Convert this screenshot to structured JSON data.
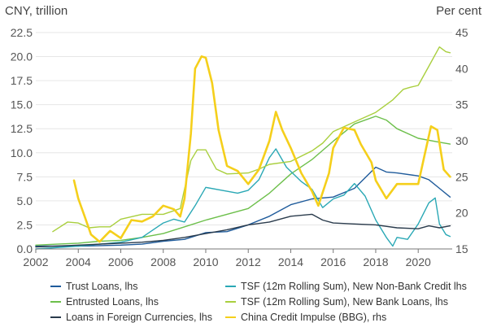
{
  "chart_data": {
    "type": "line",
    "left_axis_label": "CNY, trillion",
    "right_axis_label": "Per cent",
    "x_ticks": [
      "2002",
      "2004",
      "2006",
      "2008",
      "2010",
      "2012",
      "2014",
      "2016",
      "2018",
      "2020"
    ],
    "left_ticks": [
      "0.0",
      "2.5",
      "5.0",
      "7.5",
      "10.0",
      "12.5",
      "15.0",
      "17.5",
      "20.0",
      "22.5"
    ],
    "right_ticks": [
      "15",
      "20",
      "25",
      "30",
      "35",
      "40",
      "45"
    ],
    "xlim": [
      2002,
      2021.6
    ],
    "ylim_left": [
      0,
      22.5
    ],
    "ylim_right": [
      15,
      45
    ],
    "series": [
      {
        "name": "Trust Loans, lhs",
        "axis": "left",
        "color": "#1f5b9b",
        "points": [
          [
            2002,
            0.3
          ],
          [
            2004,
            0.3
          ],
          [
            2006,
            0.4
          ],
          [
            2007,
            0.5
          ],
          [
            2008,
            0.8
          ],
          [
            2009,
            1.0
          ],
          [
            2010,
            1.7
          ],
          [
            2011,
            1.8
          ],
          [
            2012,
            2.5
          ],
          [
            2013,
            3.4
          ],
          [
            2014,
            4.6
          ],
          [
            2015,
            5.2
          ],
          [
            2016,
            5.4
          ],
          [
            2017,
            6.3
          ],
          [
            2018,
            8.5
          ],
          [
            2018.5,
            8.0
          ],
          [
            2019,
            7.9
          ],
          [
            2020,
            7.6
          ],
          [
            2020.5,
            7.2
          ],
          [
            2021,
            6.3
          ],
          [
            2021.5,
            5.4
          ]
        ]
      },
      {
        "name": "Entrusted Loans, lhs",
        "axis": "left",
        "color": "#6cbf4a",
        "points": [
          [
            2002,
            0.4
          ],
          [
            2003,
            0.5
          ],
          [
            2004,
            0.6
          ],
          [
            2005,
            0.8
          ],
          [
            2006,
            0.9
          ],
          [
            2007,
            1.2
          ],
          [
            2008,
            1.6
          ],
          [
            2009,
            2.3
          ],
          [
            2010,
            3.0
          ],
          [
            2011,
            3.6
          ],
          [
            2012,
            4.2
          ],
          [
            2013,
            5.8
          ],
          [
            2014,
            7.8
          ],
          [
            2015,
            9.3
          ],
          [
            2016,
            11.2
          ],
          [
            2017,
            13.0
          ],
          [
            2018,
            13.8
          ],
          [
            2018.5,
            13.4
          ],
          [
            2019,
            12.5
          ],
          [
            2020,
            11.5
          ],
          [
            2021,
            11.1
          ],
          [
            2021.5,
            10.9
          ]
        ]
      },
      {
        "name": "TSF (12m Rolling Sum), New Non-Bank Credit lhs",
        "axis": "left",
        "color": "#2aa8b5",
        "points": [
          [
            2002,
            0.0
          ],
          [
            2004,
            0.3
          ],
          [
            2005,
            0.5
          ],
          [
            2006,
            0.7
          ],
          [
            2007,
            1.2
          ],
          [
            2008,
            2.7
          ],
          [
            2008.5,
            3.1
          ],
          [
            2009,
            2.8
          ],
          [
            2009.5,
            4.5
          ],
          [
            2010,
            6.4
          ],
          [
            2011,
            6.0
          ],
          [
            2011.5,
            5.8
          ],
          [
            2012,
            6.1
          ],
          [
            2012.5,
            7.2
          ],
          [
            2013,
            9.5
          ],
          [
            2013.3,
            10.4
          ],
          [
            2013.8,
            8.5
          ],
          [
            2014.5,
            7.0
          ],
          [
            2015,
            6.2
          ],
          [
            2015.5,
            4.3
          ],
          [
            2016,
            5.2
          ],
          [
            2016.5,
            5.6
          ],
          [
            2017,
            6.8
          ],
          [
            2017.5,
            5.5
          ],
          [
            2018,
            3.0
          ],
          [
            2018.5,
            1.2
          ],
          [
            2018.8,
            0.3
          ],
          [
            2019,
            1.2
          ],
          [
            2019.5,
            1.0
          ],
          [
            2020,
            2.6
          ],
          [
            2020.5,
            4.8
          ],
          [
            2020.8,
            5.3
          ],
          [
            2021,
            2.6
          ],
          [
            2021.3,
            1.5
          ],
          [
            2021.5,
            1.3
          ]
        ]
      },
      {
        "name": "TSF (12m Rolling Sum), New Bank Loans, lhs",
        "axis": "left",
        "color": "#a9cf3e",
        "points": [
          [
            2002.8,
            1.8
          ],
          [
            2003.5,
            2.8
          ],
          [
            2004,
            2.7
          ],
          [
            2004.5,
            2.2
          ],
          [
            2005,
            2.3
          ],
          [
            2005.5,
            2.3
          ],
          [
            2006,
            3.1
          ],
          [
            2007,
            3.6
          ],
          [
            2008,
            3.6
          ],
          [
            2008.8,
            4.2
          ],
          [
            2009.3,
            9.2
          ],
          [
            2009.6,
            10.3
          ],
          [
            2010,
            10.3
          ],
          [
            2010.5,
            8.3
          ],
          [
            2011,
            7.8
          ],
          [
            2012,
            7.9
          ],
          [
            2012.5,
            8.3
          ],
          [
            2013,
            8.8
          ],
          [
            2014,
            9.1
          ],
          [
            2015,
            10.2
          ],
          [
            2015.5,
            11.0
          ],
          [
            2016,
            12.2
          ],
          [
            2017,
            13.2
          ],
          [
            2018,
            14.2
          ],
          [
            2018.8,
            15.5
          ],
          [
            2019.3,
            16.6
          ],
          [
            2019.6,
            16.8
          ],
          [
            2020,
            17.0
          ],
          [
            2020.5,
            19.0
          ],
          [
            2021,
            21.0
          ],
          [
            2021.3,
            20.5
          ],
          [
            2021.5,
            20.4
          ]
        ]
      },
      {
        "name": "Loans in Foreign Currencies, lhs",
        "axis": "left",
        "color": "#2a3b4c",
        "points": [
          [
            2002,
            0.2
          ],
          [
            2004,
            0.4
          ],
          [
            2006,
            0.6
          ],
          [
            2007,
            0.7
          ],
          [
            2008,
            0.9
          ],
          [
            2009,
            1.2
          ],
          [
            2010,
            1.6
          ],
          [
            2011,
            2.0
          ],
          [
            2012,
            2.5
          ],
          [
            2013,
            2.8
          ],
          [
            2014,
            3.4
          ],
          [
            2015,
            3.6
          ],
          [
            2015.5,
            3.0
          ],
          [
            2016,
            2.7
          ],
          [
            2017,
            2.6
          ],
          [
            2018,
            2.5
          ],
          [
            2019,
            2.2
          ],
          [
            2020,
            2.1
          ],
          [
            2020.5,
            2.4
          ],
          [
            2021,
            2.2
          ],
          [
            2021.5,
            2.4
          ]
        ]
      },
      {
        "name": "China Credit Impulse (BBG), rhs",
        "axis": "right",
        "color": "#f5cf1b",
        "points": [
          [
            2003.8,
            24.5
          ],
          [
            2004,
            22.0
          ],
          [
            2004.3,
            19.5
          ],
          [
            2004.6,
            17.0
          ],
          [
            2005,
            16.0
          ],
          [
            2005.5,
            17.5
          ],
          [
            2006,
            16.5
          ],
          [
            2006.5,
            19.0
          ],
          [
            2007,
            18.8
          ],
          [
            2007.5,
            19.5
          ],
          [
            2008,
            21.0
          ],
          [
            2008.5,
            20.5
          ],
          [
            2008.8,
            19.5
          ],
          [
            2009,
            22.0
          ],
          [
            2009.3,
            31.0
          ],
          [
            2009.5,
            40.0
          ],
          [
            2009.8,
            41.7
          ],
          [
            2010,
            41.5
          ],
          [
            2010.3,
            38.0
          ],
          [
            2010.6,
            31.5
          ],
          [
            2011,
            26.5
          ],
          [
            2011.5,
            25.8
          ],
          [
            2012,
            24.0
          ],
          [
            2012.5,
            26.0
          ],
          [
            2013,
            30.0
          ],
          [
            2013.3,
            34.0
          ],
          [
            2013.6,
            31.5
          ],
          [
            2014,
            29.0
          ],
          [
            2014.5,
            25.5
          ],
          [
            2015,
            23.0
          ],
          [
            2015.3,
            21.0
          ],
          [
            2015.8,
            25.5
          ],
          [
            2016,
            29.0
          ],
          [
            2016.5,
            31.8
          ],
          [
            2017,
            31.5
          ],
          [
            2017.3,
            29.5
          ],
          [
            2017.8,
            27.0
          ],
          [
            2018,
            24.5
          ],
          [
            2018.5,
            22.0
          ],
          [
            2019,
            24.0
          ],
          [
            2019.5,
            24.0
          ],
          [
            2020,
            24.0
          ],
          [
            2020.3,
            28.0
          ],
          [
            2020.6,
            32.0
          ],
          [
            2020.9,
            31.5
          ],
          [
            2021.2,
            26.0
          ],
          [
            2021.5,
            25.0
          ]
        ]
      }
    ]
  }
}
